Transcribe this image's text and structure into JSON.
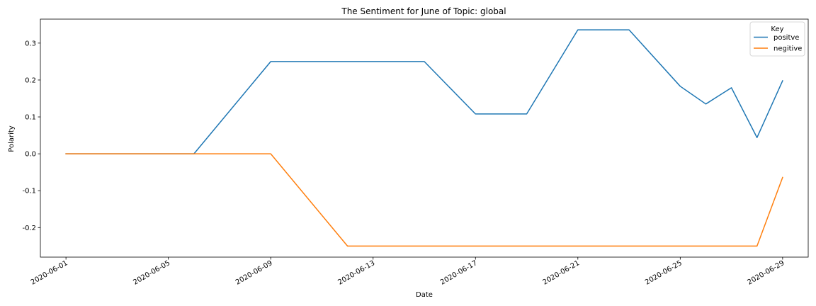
{
  "chart_data": {
    "type": "line",
    "title": "The Sentiment for June of Topic: global",
    "xlabel": "Date",
    "ylabel": "Polarity",
    "x_ticks": [
      "2020-06-01",
      "2020-06-05",
      "2020-06-09",
      "2020-06-13",
      "2020-06-17",
      "2020-06-21",
      "2020-06-25",
      "2020-06-29"
    ],
    "y_ticks": [
      -0.2,
      -0.1,
      0.0,
      0.1,
      0.2,
      0.3
    ],
    "xlim": [
      "2020-05-31",
      "2020-06-30"
    ],
    "ylim": [
      -0.28,
      0.365
    ],
    "grid": false,
    "legend": {
      "title": "Key",
      "placement": "top-right"
    },
    "series": [
      {
        "name": "positve",
        "color": "#1f77b4",
        "points": [
          [
            "2020-06-01",
            0.0
          ],
          [
            "2020-06-06",
            0.0
          ],
          [
            "2020-06-09",
            0.25
          ],
          [
            "2020-06-15",
            0.25
          ],
          [
            "2020-06-17",
            0.108
          ],
          [
            "2020-06-19",
            0.108
          ],
          [
            "2020-06-21",
            0.336
          ],
          [
            "2020-06-23",
            0.336
          ],
          [
            "2020-06-25",
            0.183
          ],
          [
            "2020-06-26",
            0.135
          ],
          [
            "2020-06-27",
            0.179
          ],
          [
            "2020-06-28",
            0.044
          ],
          [
            "2020-06-29",
            0.198
          ]
        ]
      },
      {
        "name": "negitive",
        "color": "#ff7f0e",
        "points": [
          [
            "2020-06-01",
            0.0
          ],
          [
            "2020-06-09",
            0.0
          ],
          [
            "2020-06-12",
            -0.25
          ],
          [
            "2020-06-28",
            -0.25
          ],
          [
            "2020-06-29",
            -0.064
          ]
        ]
      }
    ]
  }
}
